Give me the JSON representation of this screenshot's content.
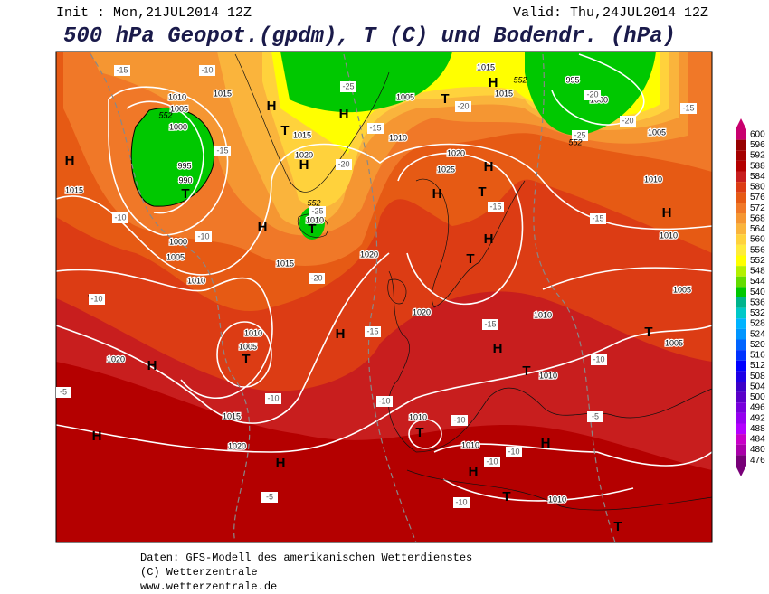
{
  "header": {
    "init": "Init : Mon,21JUL2014 12Z",
    "valid": "Valid: Thu,24JUL2014 12Z",
    "title": "500 hPa Geopot.(gpdm), T (C) und Bodendr. (hPa)"
  },
  "legend": {
    "values": [
      600,
      596,
      592,
      588,
      584,
      580,
      576,
      572,
      568,
      564,
      560,
      556,
      552,
      548,
      544,
      540,
      536,
      532,
      528,
      524,
      520,
      516,
      512,
      508,
      504,
      500,
      496,
      492,
      488,
      484,
      480,
      476
    ],
    "colors": [
      "#c8006e",
      "#960000",
      "#a50000",
      "#b40000",
      "#c81e1e",
      "#dc3c14",
      "#e65a14",
      "#f07828",
      "#f59632",
      "#fab43c",
      "#ffd23c",
      "#ffeb3c",
      "#ffff00",
      "#b4f000",
      "#64dc00",
      "#00c800",
      "#00b48c",
      "#00c8c8",
      "#00b4ff",
      "#0096ff",
      "#0064ff",
      "#0032ff",
      "#0000ff",
      "#1e00e6",
      "#3c00c8",
      "#5a00c8",
      "#7800dc",
      "#9600f0",
      "#b400ff",
      "#c800c8",
      "#aa00aa",
      "#780078"
    ]
  },
  "map": {
    "pressure_centers": [
      "H",
      "H",
      "H",
      "T",
      "T",
      "H",
      "T",
      "H",
      "H",
      "T",
      "H",
      "T",
      "H",
      "T",
      "H",
      "T",
      "H",
      "H",
      "T",
      "T",
      "T",
      "H",
      "H",
      "H",
      "H",
      "T",
      "T",
      "H",
      "T",
      "H"
    ],
    "isobar_labels": [
      "1015",
      "1010",
      "1005",
      "1000",
      "995",
      "990",
      "1015",
      "1000",
      "1005",
      "1010",
      "1015",
      "1020",
      "1010",
      "1015",
      "1010",
      "1020",
      "1025",
      "1020",
      "1020",
      "1010",
      "1010",
      "1005",
      "1005",
      "1005",
      "1010",
      "1000",
      "995",
      "1015",
      "1015",
      "1005",
      "1010",
      "1005",
      "1020",
      "1015",
      "1020",
      "1010",
      "1010",
      "1010",
      "1010"
    ],
    "temperature_labels": [
      "-15",
      "-10",
      "-15",
      "-25",
      "-20",
      "-25",
      "-15",
      "-20",
      "-20",
      "-20",
      "-15",
      "-25",
      "-15",
      "-15",
      "-10",
      "-10",
      "-20",
      "-10",
      "-15",
      "-15",
      "-10",
      "-10",
      "-10",
      "-10",
      "-5",
      "-10",
      "-10",
      "-10",
      "-5",
      "-5"
    ],
    "height_labels": [
      "552",
      "552",
      "552",
      "552"
    ]
  },
  "footer": {
    "line1": "Daten: GFS-Modell des amerikanischen Wetterdienstes",
    "line2": "(C) Wetterzentrale",
    "line3": "www.wetterzentrale.de"
  }
}
